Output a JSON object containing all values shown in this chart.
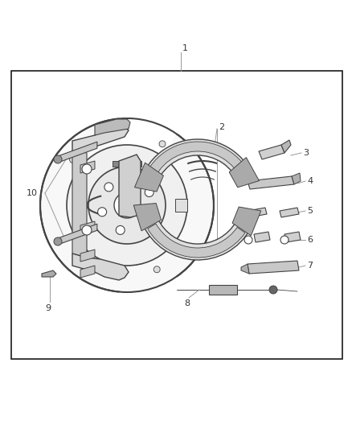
{
  "background_color": "#ffffff",
  "border_color": "#1a1a1a",
  "dgray": "#444444",
  "mgray": "#888888",
  "lgray": "#cccccc",
  "leader_color": "#999999",
  "font_size": 8,
  "border": [
    0.07,
    0.1,
    0.88,
    0.72
  ],
  "fig_width": 4.38,
  "fig_height": 5.33,
  "dpi": 100
}
